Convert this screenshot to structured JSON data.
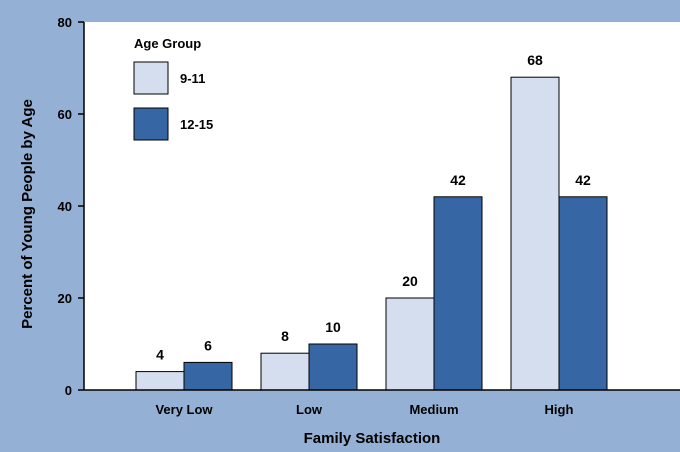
{
  "chart_data": {
    "type": "bar",
    "title": "",
    "xlabel": "Family Satisfaction",
    "ylabel": "Percent of Young People by Age",
    "categories": [
      "Very Low",
      "Low",
      "Medium",
      "High"
    ],
    "series": [
      {
        "name": "9-11",
        "values": [
          4,
          8,
          20,
          68
        ],
        "color": "#d4deee"
      },
      {
        "name": "12-15",
        "values": [
          6,
          10,
          42,
          42
        ],
        "color": "#3766a4"
      }
    ],
    "ylim": [
      0,
      80
    ],
    "yticks": [
      0,
      20,
      40,
      60,
      80
    ],
    "grid": false,
    "legend_title": "Age Group",
    "legend_position": "top-left",
    "data_labels": true
  },
  "colors": {
    "frame_background": "#94b0d4",
    "plot_background": "#ffffff"
  }
}
